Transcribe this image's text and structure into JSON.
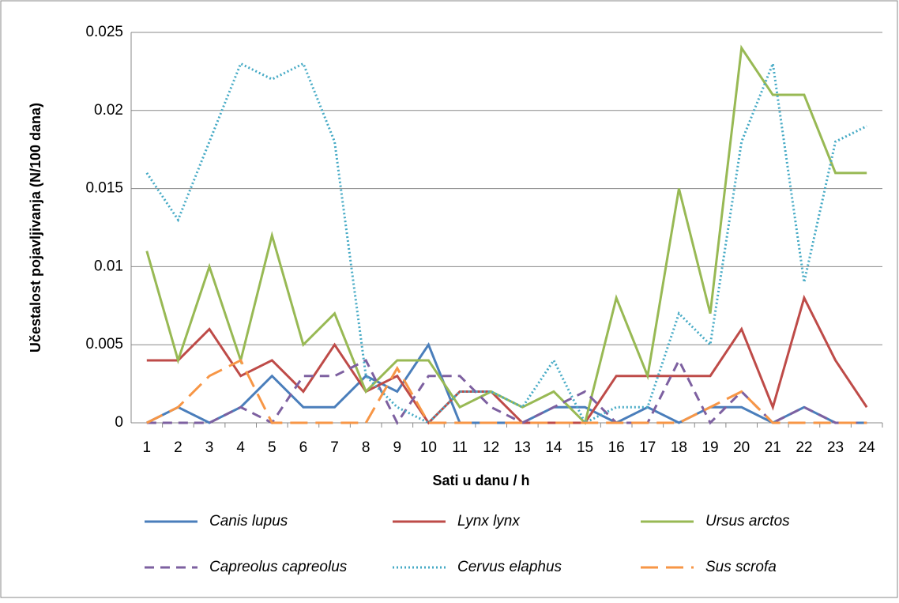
{
  "chart_data": {
    "type": "line",
    "xlabel": "Sati u danu / h",
    "ylabel": "Učestalost pojavljivanja (N/100 dana)",
    "categories": [
      "1",
      "2",
      "3",
      "4",
      "5",
      "6",
      "7",
      "8",
      "9",
      "10",
      "11",
      "12",
      "13",
      "14",
      "15",
      "16",
      "17",
      "18",
      "19",
      "20",
      "21",
      "22",
      "23",
      "24"
    ],
    "ylim": [
      0,
      0.025
    ],
    "yticks": [
      0,
      0.005,
      0.01,
      0.015,
      0.02,
      0.025
    ],
    "grid": true,
    "legend": "bottom",
    "series": [
      {
        "name": "Canis lupus",
        "color": "#4a7ebb",
        "dash": "solid",
        "values": [
          0,
          0.001,
          0,
          0.001,
          0.003,
          0.001,
          0.001,
          0.003,
          0.002,
          0.005,
          0,
          0,
          0,
          0.001,
          0.001,
          0,
          0.001,
          0,
          0.001,
          0.001,
          0,
          0.001,
          0,
          0
        ]
      },
      {
        "name": "Lynx lynx",
        "color": "#be4b48",
        "dash": "solid",
        "values": [
          0.004,
          0.004,
          0.006,
          0.003,
          0.004,
          0.002,
          0.005,
          0.002,
          0.003,
          0,
          0.002,
          0.002,
          0,
          0,
          0,
          0.003,
          0.003,
          0.003,
          0.003,
          0.006,
          0.001,
          0.008,
          0.004,
          0.001
        ]
      },
      {
        "name": "Ursus arctos",
        "color": "#98b954",
        "dash": "solid",
        "values": [
          0.011,
          0.004,
          0.01,
          0.004,
          0.012,
          0.005,
          0.007,
          0.002,
          0.004,
          0.004,
          0.001,
          0.002,
          0.001,
          0.002,
          0,
          0.008,
          0.003,
          0.015,
          0.007,
          0.024,
          0.021,
          0.021,
          0.016,
          0.016
        ]
      },
      {
        "name": "Capreolus capreolus",
        "color": "#7d60a0",
        "dash": "dash",
        "values": [
          0,
          0,
          0,
          0.001,
          0,
          0.003,
          0.003,
          0.004,
          0,
          0.003,
          0.003,
          0.001,
          0,
          0.001,
          0.002,
          0,
          0,
          0.004,
          0,
          0.002,
          0,
          0.001,
          0,
          0
        ]
      },
      {
        "name": "Cervus elaphus",
        "color": "#46aac5",
        "dash": "dot",
        "values": [
          0.016,
          0.013,
          0.018,
          0.023,
          0.022,
          0.023,
          0.018,
          0.003,
          0.001,
          0,
          0.002,
          0.002,
          0.001,
          0.004,
          0,
          0.001,
          0.001,
          0.007,
          0.005,
          0.018,
          0.023,
          0.009,
          0.018,
          0.019
        ]
      },
      {
        "name": "Sus scrofa",
        "color": "#f79646",
        "dash": "longdash",
        "values": [
          0,
          0.001,
          0.003,
          0.004,
          0,
          0,
          0,
          0,
          0.0035,
          0,
          0,
          0,
          0,
          0,
          0,
          0,
          0,
          0,
          0.001,
          0.002,
          0,
          0,
          0,
          0
        ]
      }
    ]
  }
}
